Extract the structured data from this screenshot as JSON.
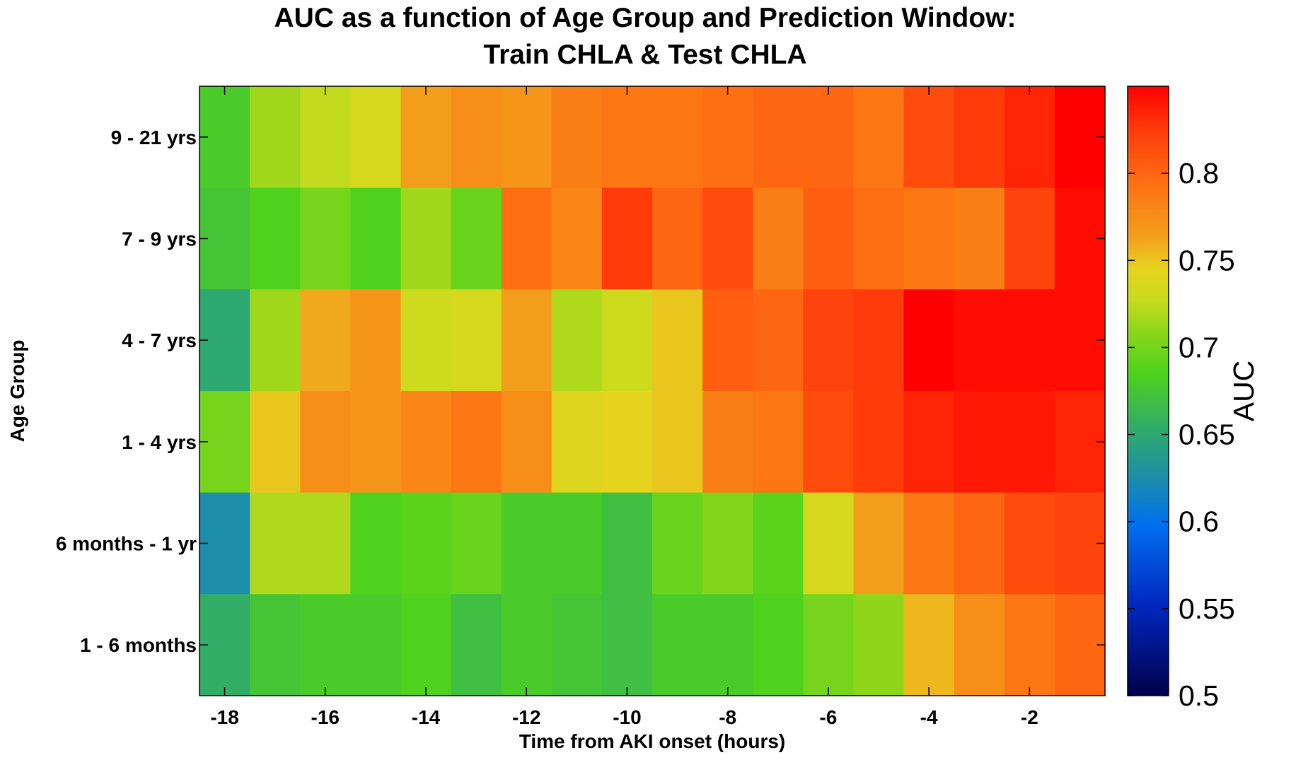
{
  "chart_data": {
    "type": "heatmap",
    "title": "AUC as a function of Age Group and Prediction Window:",
    "subtitle": "Train CHLA & Test CHLA",
    "xlabel": "Time from AKI onset (hours)",
    "ylabel": "Age Group",
    "colorbar_label": "AUC",
    "x": [
      -18,
      -17,
      -16,
      -15,
      -14,
      -13,
      -12,
      -11,
      -10,
      -9,
      -8,
      -7,
      -6,
      -5,
      -4,
      -3,
      -2,
      -1
    ],
    "x_ticks": [
      -18,
      -16,
      -14,
      -12,
      -10,
      -8,
      -6,
      -4,
      -2
    ],
    "xlim": [
      -18.5,
      -0.5
    ],
    "y_categories": [
      "9 - 21 yrs",
      "7 - 9 yrs",
      "4 - 7 yrs",
      "1 - 4 yrs",
      "6 months - 1 yr",
      "1 - 6 months"
    ],
    "values": [
      [
        0.68,
        0.715,
        0.725,
        0.735,
        0.765,
        0.775,
        0.77,
        0.785,
        0.79,
        0.79,
        0.795,
        0.8,
        0.8,
        0.79,
        0.815,
        0.825,
        0.835,
        0.85
      ],
      [
        0.675,
        0.685,
        0.7,
        0.685,
        0.715,
        0.695,
        0.795,
        0.78,
        0.825,
        0.8,
        0.815,
        0.785,
        0.805,
        0.795,
        0.79,
        0.785,
        0.82,
        0.845
      ],
      [
        0.65,
        0.715,
        0.76,
        0.77,
        0.73,
        0.735,
        0.765,
        0.72,
        0.73,
        0.75,
        0.805,
        0.8,
        0.82,
        0.825,
        0.85,
        0.845,
        0.845,
        0.845
      ],
      [
        0.7,
        0.75,
        0.775,
        0.77,
        0.78,
        0.79,
        0.775,
        0.74,
        0.745,
        0.75,
        0.785,
        0.79,
        0.815,
        0.825,
        0.835,
        0.84,
        0.84,
        0.835
      ],
      [
        0.625,
        0.72,
        0.72,
        0.685,
        0.69,
        0.695,
        0.68,
        0.68,
        0.67,
        0.695,
        0.705,
        0.69,
        0.735,
        0.765,
        0.79,
        0.8,
        0.815,
        0.82
      ],
      [
        0.655,
        0.675,
        0.68,
        0.68,
        0.685,
        0.67,
        0.68,
        0.675,
        0.67,
        0.68,
        0.68,
        0.685,
        0.7,
        0.71,
        0.755,
        0.775,
        0.79,
        0.8
      ]
    ],
    "color_scale": {
      "min": 0.5,
      "max": 0.85,
      "ticks": [
        0.5,
        0.55,
        0.6,
        0.65,
        0.7,
        0.75,
        0.8
      ],
      "tick_labels": [
        "0.5",
        "0.55",
        "0.6",
        "0.65",
        "0.7",
        "0.75",
        "0.8"
      ],
      "stops": [
        {
          "v": 0.0,
          "color": "#00004a"
        },
        {
          "v": 0.15,
          "color": "#0028c0"
        },
        {
          "v": 0.28,
          "color": "#0070f0"
        },
        {
          "v": 0.36,
          "color": "#1c8fa8"
        },
        {
          "v": 0.45,
          "color": "#34b060"
        },
        {
          "v": 0.53,
          "color": "#4fd21c"
        },
        {
          "v": 0.6,
          "color": "#8fd61a"
        },
        {
          "v": 0.65,
          "color": "#c9db1d"
        },
        {
          "v": 0.7,
          "color": "#e6d41e"
        },
        {
          "v": 0.75,
          "color": "#f2a21c"
        },
        {
          "v": 0.85,
          "color": "#ff6a12"
        },
        {
          "v": 0.93,
          "color": "#ff3a0a"
        },
        {
          "v": 1.0,
          "color": "#ff0000"
        }
      ]
    },
    "grid": false
  }
}
